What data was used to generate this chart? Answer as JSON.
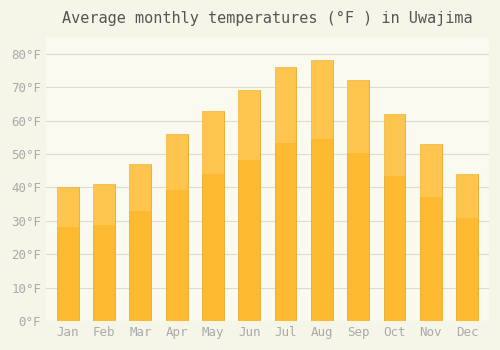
{
  "title": "Average monthly temperatures (°F ) in Uwajima",
  "months": [
    "Jan",
    "Feb",
    "Mar",
    "Apr",
    "May",
    "Jun",
    "Jul",
    "Aug",
    "Sep",
    "Oct",
    "Nov",
    "Dec"
  ],
  "values": [
    40,
    41,
    47,
    56,
    63,
    69,
    76,
    78,
    72,
    62,
    53,
    44
  ],
  "bar_color": "#FDB930",
  "bar_edge_color": "#E8A020",
  "background_color": "#F5F5E8",
  "plot_bg_color": "#FAFAF0",
  "grid_color": "#DDDDCC",
  "ytick_labels": [
    "0°F",
    "10°F",
    "20°F",
    "30°F",
    "40°F",
    "50°F",
    "60°F",
    "70°F",
    "80°F"
  ],
  "ytick_values": [
    0,
    10,
    20,
    30,
    40,
    50,
    60,
    70,
    80
  ],
  "ylim": [
    0,
    85
  ],
  "title_fontsize": 11,
  "tick_fontsize": 9,
  "tick_font_color": "#AAAAAA",
  "title_font_color": "#555555"
}
